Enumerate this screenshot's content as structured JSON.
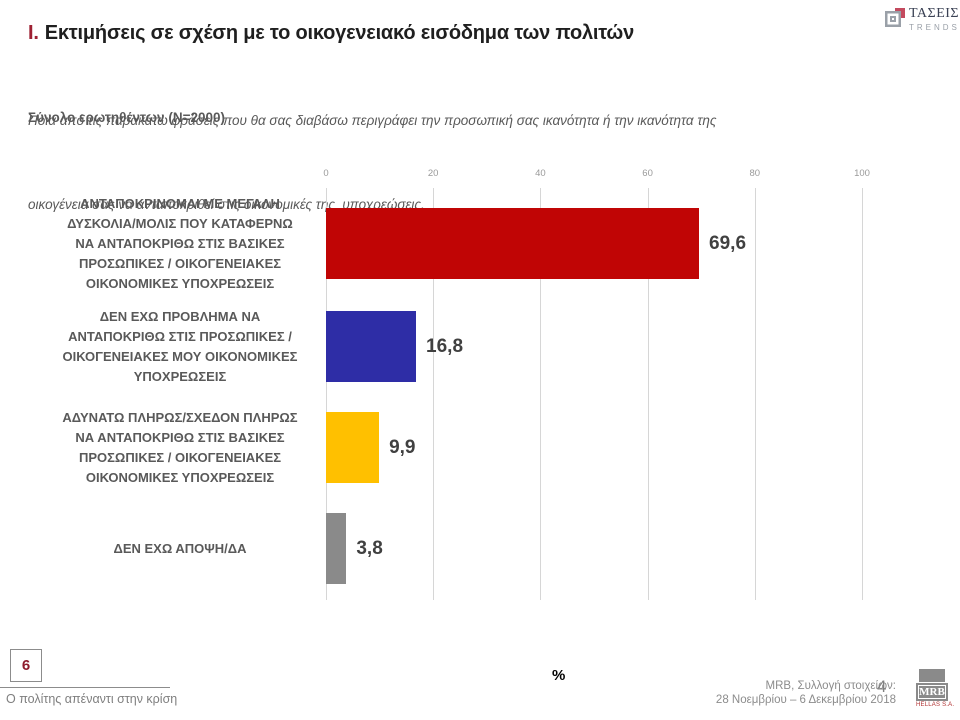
{
  "header": {
    "section_numeral": "Ι.",
    "title": "Εκτιμήσεις σε σχέση με το οικογενειακό εισόδημα των πολιτών",
    "subtitle_line1": "Ποια από τις παρακάτω φράσεις που θα σας διαβάσω περιγράφει την προσωπική σας ικανότητα ή την ικανότητα της",
    "subtitle_line2": "οικογένεια σας να ανταποκριθεί στις οικονομικές της  υποχρεώσεις.",
    "sample": "Σύνολο ερωτηθέντων (N=2000)"
  },
  "brand": {
    "name": "ΤΑΣΕΙΣ",
    "subname": "TRENDS",
    "icon": "concentric-squares-logo",
    "accent_color": "#c34a5e"
  },
  "chart_data": {
    "type": "bar",
    "orientation": "horizontal",
    "title": "Εκτιμήσεις σε σχέση με το οικογενειακό εισόδημα των πολιτών",
    "categories": [
      "ΑΝΤΑΠΟΚΡΙΝΟΜΑΙ ΜΕ ΜΕΓΑΛΗ\nΔΥΣΚΟΛΙΑ/ΜΟΛΙΣ ΠΟΥ ΚΑΤΑΦΕΡΝΩ\nΝΑ ΑΝΤΑΠΟΚΡΙΘΩ ΣΤΙΣ ΒΑΣΙΚΕΣ\nΠΡΟΣΩΠΙΚΕΣ / ΟΙΚΟΓΕΝΕΙΑΚΕΣ\nΟΙΚΟΝΟΜΙΚΕΣ ΥΠΟΧΡΕΩΣΕΙΣ",
      "ΔΕΝ ΕΧΩ ΠΡΟΒΛΗΜΑ ΝΑ\nΑΝΤΑΠΟΚΡΙΘΩ ΣΤΙΣ ΠΡΟΣΩΠΙΚΕΣ /\nΟΙΚΟΓΕΝΕΙΑΚΕΣ ΜΟΥ ΟΙΚΟΝΟΜΙΚΕΣ\nΥΠΟΧΡΕΩΣΕΙΣ",
      "ΑΔΥΝΑΤΩ ΠΛΗΡΩΣ/ΣΧΕΔΟΝ ΠΛΗΡΩΣ\nΝΑ ΑΝΤΑΠΟΚΡΙΘΩ ΣΤΙΣ ΒΑΣΙΚΕΣ\nΠΡΟΣΩΠΙΚΕΣ / ΟΙΚΟΓΕΝΕΙΑΚΕΣ\nΟΙΚΟΝΟΜΙΚΕΣ ΥΠΟΧΡΕΩΣΕΙΣ",
      "ΔΕΝ ΕΧΩ ΑΠΟΨΗ/ΔΑ"
    ],
    "values": [
      69.6,
      16.8,
      9.9,
      3.8
    ],
    "value_labels": [
      "69,6",
      "16,8",
      "9,9",
      "3,8"
    ],
    "colors": [
      "#c00505",
      "#2e2da6",
      "#ffc000",
      "#8a8a8a"
    ],
    "xlim": [
      0,
      100
    ],
    "xticks": [
      0,
      20,
      40,
      60,
      80,
      100
    ],
    "grid": true,
    "legend": false,
    "unit_label": "%"
  },
  "footer": {
    "page_box": "6",
    "series_title": "Ο πολίτης απέναντι στην κρίση",
    "source_line1": "MRB, Συλλογή στοιχείων:",
    "source_line2": "28 Νοεμβρίου – 6 Δεκεμβρίου 2018",
    "page_number": "4",
    "logo_text": "MRB",
    "logo_subtext": "HELLAS S.A."
  }
}
